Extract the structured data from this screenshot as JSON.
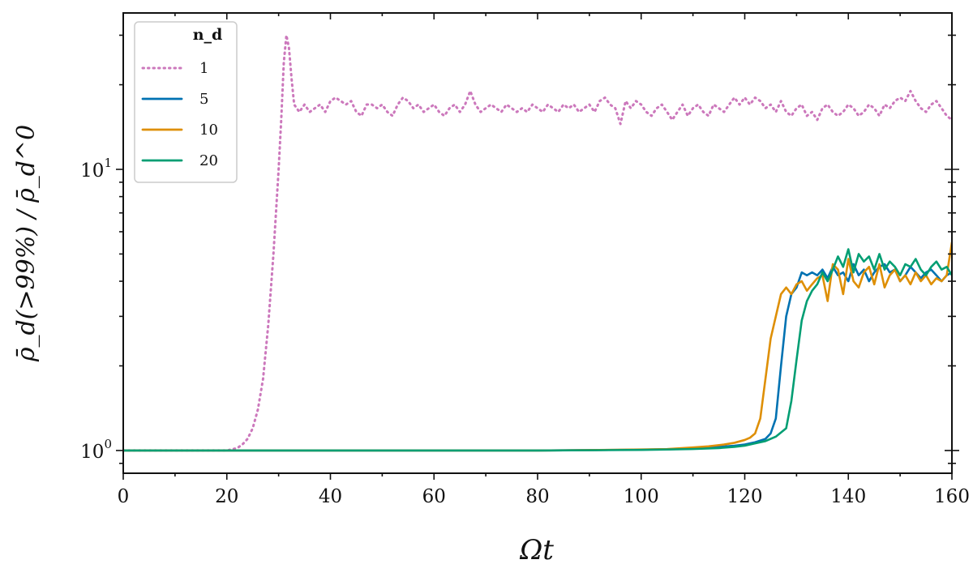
{
  "chart_data": {
    "type": "line",
    "title": "",
    "xlabel": "Ωt",
    "ylabel": "ρ̄_d(>99%) / ρ̄_d^0",
    "xlim": [
      0,
      160
    ],
    "ylim": [
      0.83,
      36
    ],
    "yscale": "log",
    "grid": false,
    "legend_title": "n_d",
    "legend_position": "top-left",
    "x_ticks": [
      0,
      20,
      40,
      60,
      80,
      100,
      120,
      140,
      160
    ],
    "x_tick_labels": [
      "0",
      "20",
      "40",
      "60",
      "80",
      "100",
      "120",
      "140",
      "160"
    ],
    "y_major_ticks": [
      1,
      10
    ],
    "series": [
      {
        "name": "1",
        "color": "#cc78bc",
        "style": "dotted",
        "points": [
          [
            0,
            1
          ],
          [
            5,
            1
          ],
          [
            10,
            1
          ],
          [
            15,
            1
          ],
          [
            18,
            1
          ],
          [
            20,
            1
          ],
          [
            21,
            1.01
          ],
          [
            22,
            1.02
          ],
          [
            23,
            1.05
          ],
          [
            24,
            1.1
          ],
          [
            25,
            1.2
          ],
          [
            26,
            1.4
          ],
          [
            27,
            1.8
          ],
          [
            28,
            2.8
          ],
          [
            29,
            5
          ],
          [
            30,
            10
          ],
          [
            30.5,
            15
          ],
          [
            31,
            24
          ],
          [
            31.5,
            30
          ],
          [
            32,
            27
          ],
          [
            32.5,
            21
          ],
          [
            33,
            17
          ],
          [
            34,
            16
          ],
          [
            35,
            17
          ],
          [
            36,
            16
          ],
          [
            37,
            16.5
          ],
          [
            38,
            17
          ],
          [
            39,
            16
          ],
          [
            40,
            17.5
          ],
          [
            41,
            18
          ],
          [
            42,
            17.5
          ],
          [
            43,
            17
          ],
          [
            44,
            17.5
          ],
          [
            45,
            16
          ],
          [
            46,
            15.5
          ],
          [
            47,
            17
          ],
          [
            48,
            17
          ],
          [
            49,
            16.5
          ],
          [
            50,
            17
          ],
          [
            51,
            16
          ],
          [
            52,
            15.5
          ],
          [
            53,
            17
          ],
          [
            54,
            18
          ],
          [
            55,
            17.5
          ],
          [
            56,
            16.5
          ],
          [
            57,
            17
          ],
          [
            58,
            16
          ],
          [
            59,
            16.5
          ],
          [
            60,
            17
          ],
          [
            61,
            16
          ],
          [
            62,
            15.5
          ],
          [
            63,
            16.5
          ],
          [
            64,
            17
          ],
          [
            65,
            16
          ],
          [
            66,
            17
          ],
          [
            67,
            19
          ],
          [
            68,
            17
          ],
          [
            69,
            16
          ],
          [
            70,
            16.5
          ],
          [
            71,
            17
          ],
          [
            72,
            16.5
          ],
          [
            73,
            16
          ],
          [
            74,
            17
          ],
          [
            75,
            16.5
          ],
          [
            76,
            16
          ],
          [
            77,
            16.5
          ],
          [
            78,
            16
          ],
          [
            79,
            17
          ],
          [
            80,
            16.5
          ],
          [
            81,
            16
          ],
          [
            82,
            17
          ],
          [
            83,
            16.5
          ],
          [
            84,
            16
          ],
          [
            85,
            17
          ],
          [
            86,
            16.5
          ],
          [
            87,
            17
          ],
          [
            88,
            16
          ],
          [
            89,
            16.5
          ],
          [
            90,
            17
          ],
          [
            91,
            16
          ],
          [
            92,
            17.5
          ],
          [
            93,
            18
          ],
          [
            94,
            17
          ],
          [
            95,
            16.5
          ],
          [
            96,
            14.5
          ],
          [
            97,
            17.5
          ],
          [
            98,
            16.5
          ],
          [
            99,
            17.5
          ],
          [
            100,
            17
          ],
          [
            101,
            16
          ],
          [
            102,
            15.5
          ],
          [
            103,
            16.5
          ],
          [
            104,
            17
          ],
          [
            105,
            16
          ],
          [
            106,
            15
          ],
          [
            107,
            16
          ],
          [
            108,
            17
          ],
          [
            109,
            15.5
          ],
          [
            110,
            16.5
          ],
          [
            111,
            17
          ],
          [
            112,
            16
          ],
          [
            113,
            15.5
          ],
          [
            114,
            17
          ],
          [
            115,
            16.5
          ],
          [
            116,
            16
          ],
          [
            117,
            17
          ],
          [
            118,
            18
          ],
          [
            119,
            17
          ],
          [
            120,
            18
          ],
          [
            121,
            17
          ],
          [
            122,
            18
          ],
          [
            123,
            17.5
          ],
          [
            124,
            16.5
          ],
          [
            125,
            17
          ],
          [
            126,
            16
          ],
          [
            127,
            17.5
          ],
          [
            128,
            16
          ],
          [
            129,
            15.5
          ],
          [
            130,
            16.5
          ],
          [
            131,
            17
          ],
          [
            132,
            15.5
          ],
          [
            133,
            16
          ],
          [
            134,
            15
          ],
          [
            135,
            16.5
          ],
          [
            136,
            17
          ],
          [
            137,
            16
          ],
          [
            138,
            15.5
          ],
          [
            139,
            16
          ],
          [
            140,
            17
          ],
          [
            141,
            16.5
          ],
          [
            142,
            15.5
          ],
          [
            143,
            16
          ],
          [
            144,
            17
          ],
          [
            145,
            16.5
          ],
          [
            146,
            15.5
          ],
          [
            147,
            17
          ],
          [
            148,
            16.5
          ],
          [
            149,
            17.5
          ],
          [
            150,
            18
          ],
          [
            151,
            17.5
          ],
          [
            152,
            19
          ],
          [
            153,
            17.5
          ],
          [
            154,
            16.5
          ],
          [
            155,
            16
          ],
          [
            156,
            17
          ],
          [
            157,
            17.5
          ],
          [
            158,
            16.5
          ],
          [
            159,
            15.5
          ],
          [
            160,
            15
          ]
        ]
      },
      {
        "name": "5",
        "color": "#0072b2",
        "style": "solid",
        "points": [
          [
            0,
            1
          ],
          [
            20,
            1
          ],
          [
            40,
            1
          ],
          [
            60,
            1
          ],
          [
            80,
            1
          ],
          [
            90,
            1.003
          ],
          [
            100,
            1.007
          ],
          [
            105,
            1.01
          ],
          [
            110,
            1.015
          ],
          [
            115,
            1.03
          ],
          [
            118,
            1.04
          ],
          [
            120,
            1.05
          ],
          [
            122,
            1.07
          ],
          [
            124,
            1.1
          ],
          [
            125,
            1.15
          ],
          [
            126,
            1.3
          ],
          [
            127,
            2
          ],
          [
            128,
            3
          ],
          [
            129,
            3.6
          ],
          [
            130,
            3.8
          ],
          [
            131,
            4.3
          ],
          [
            132,
            4.2
          ],
          [
            133,
            4.3
          ],
          [
            134,
            4.2
          ],
          [
            135,
            4.4
          ],
          [
            136,
            4.1
          ],
          [
            137,
            4.5
          ],
          [
            138,
            4.2
          ],
          [
            139,
            4.3
          ],
          [
            140,
            4.0
          ],
          [
            141,
            4.6
          ],
          [
            142,
            4.2
          ],
          [
            143,
            4.4
          ],
          [
            144,
            4.0
          ],
          [
            145,
            4.3
          ],
          [
            146,
            4.5
          ],
          [
            147,
            4.6
          ],
          [
            148,
            4.3
          ],
          [
            149,
            4.4
          ],
          [
            150,
            4.0
          ],
          [
            151,
            4.2
          ],
          [
            152,
            4.5
          ],
          [
            153,
            4.3
          ],
          [
            154,
            4.1
          ],
          [
            155,
            4.3
          ],
          [
            156,
            4.4
          ],
          [
            157,
            4.2
          ],
          [
            158,
            4.0
          ],
          [
            159,
            4.2
          ],
          [
            160,
            4.3
          ]
        ]
      },
      {
        "name": "10",
        "color": "#de8f05",
        "style": "solid",
        "points": [
          [
            0,
            1
          ],
          [
            20,
            1
          ],
          [
            40,
            1
          ],
          [
            60,
            1
          ],
          [
            80,
            1
          ],
          [
            90,
            1.003
          ],
          [
            100,
            1.008
          ],
          [
            105,
            1.012
          ],
          [
            110,
            1.025
          ],
          [
            113,
            1.035
          ],
          [
            116,
            1.05
          ],
          [
            118,
            1.065
          ],
          [
            120,
            1.09
          ],
          [
            121,
            1.11
          ],
          [
            122,
            1.15
          ],
          [
            123,
            1.3
          ],
          [
            124,
            1.8
          ],
          [
            125,
            2.5
          ],
          [
            126,
            3.0
          ],
          [
            127,
            3.6
          ],
          [
            128,
            3.8
          ],
          [
            129,
            3.6
          ],
          [
            130,
            3.9
          ],
          [
            131,
            4.0
          ],
          [
            132,
            3.7
          ],
          [
            133,
            3.9
          ],
          [
            134,
            4.1
          ],
          [
            135,
            4.2
          ],
          [
            136,
            3.4
          ],
          [
            137,
            4.6
          ],
          [
            138,
            4.4
          ],
          [
            139,
            3.6
          ],
          [
            140,
            4.8
          ],
          [
            141,
            4.0
          ],
          [
            142,
            3.8
          ],
          [
            143,
            4.3
          ],
          [
            144,
            4.5
          ],
          [
            145,
            3.9
          ],
          [
            146,
            4.6
          ],
          [
            147,
            3.8
          ],
          [
            148,
            4.2
          ],
          [
            149,
            4.4
          ],
          [
            150,
            4.0
          ],
          [
            151,
            4.2
          ],
          [
            152,
            3.9
          ],
          [
            153,
            4.3
          ],
          [
            154,
            4.0
          ],
          [
            155,
            4.2
          ],
          [
            156,
            3.9
          ],
          [
            157,
            4.1
          ],
          [
            158,
            4.0
          ],
          [
            159,
            4.2
          ],
          [
            160,
            5.5
          ]
        ]
      },
      {
        "name": "20",
        "color": "#029e73",
        "style": "solid",
        "points": [
          [
            0,
            1
          ],
          [
            20,
            1
          ],
          [
            40,
            1
          ],
          [
            60,
            1
          ],
          [
            80,
            1
          ],
          [
            90,
            1.002
          ],
          [
            100,
            1.005
          ],
          [
            105,
            1.008
          ],
          [
            110,
            1.012
          ],
          [
            115,
            1.02
          ],
          [
            118,
            1.03
          ],
          [
            120,
            1.04
          ],
          [
            122,
            1.06
          ],
          [
            124,
            1.08
          ],
          [
            126,
            1.12
          ],
          [
            128,
            1.2
          ],
          [
            129,
            1.5
          ],
          [
            130,
            2.1
          ],
          [
            131,
            2.9
          ],
          [
            132,
            3.4
          ],
          [
            133,
            3.7
          ],
          [
            134,
            3.9
          ],
          [
            135,
            4.3
          ],
          [
            136,
            4.0
          ],
          [
            137,
            4.4
          ],
          [
            138,
            4.9
          ],
          [
            139,
            4.5
          ],
          [
            140,
            5.2
          ],
          [
            141,
            4.3
          ],
          [
            142,
            5.0
          ],
          [
            143,
            4.7
          ],
          [
            144,
            4.9
          ],
          [
            145,
            4.4
          ],
          [
            146,
            5.0
          ],
          [
            147,
            4.4
          ],
          [
            148,
            4.7
          ],
          [
            149,
            4.5
          ],
          [
            150,
            4.2
          ],
          [
            151,
            4.6
          ],
          [
            152,
            4.5
          ],
          [
            153,
            4.8
          ],
          [
            154,
            4.4
          ],
          [
            155,
            4.2
          ],
          [
            156,
            4.5
          ],
          [
            157,
            4.7
          ],
          [
            158,
            4.4
          ],
          [
            159,
            4.5
          ],
          [
            160,
            4.2
          ]
        ]
      }
    ]
  }
}
